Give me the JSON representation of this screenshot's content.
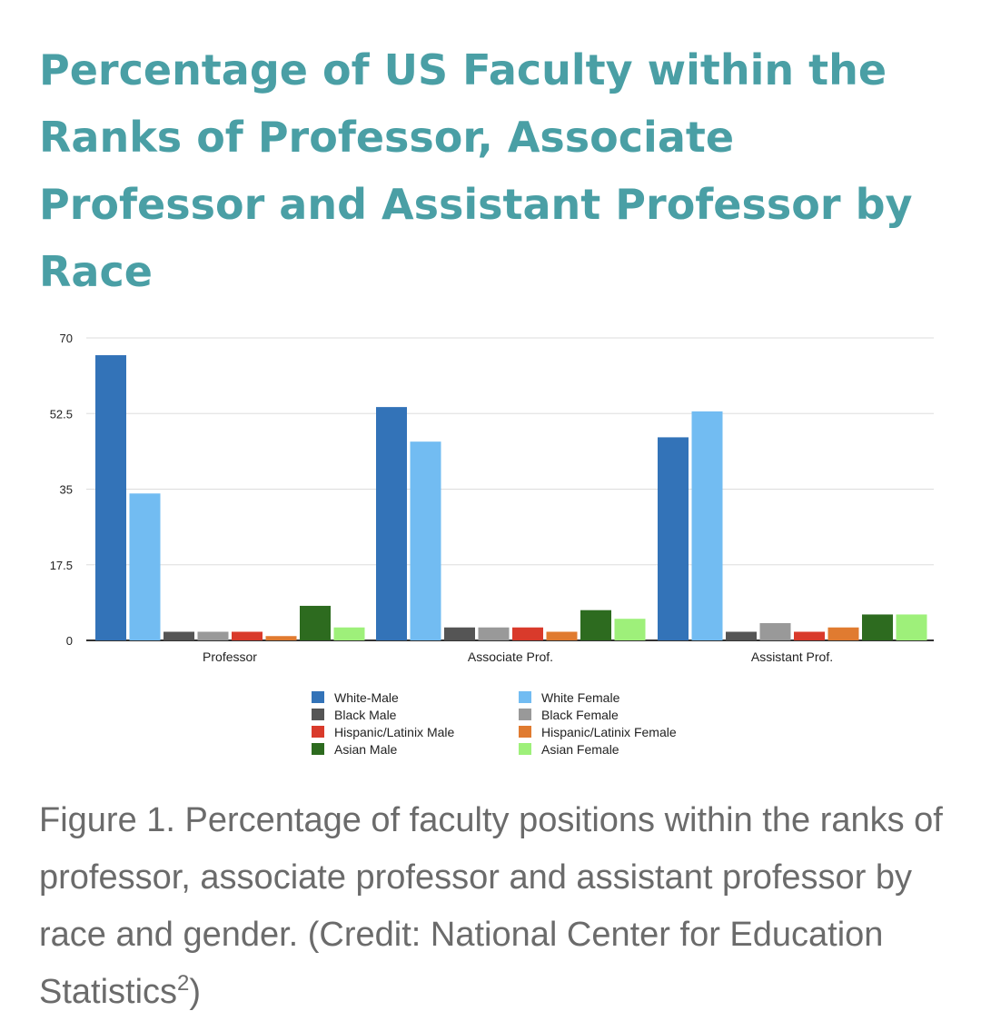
{
  "page": {
    "title": "Percentage of US Faculty within the Ranks of Professor, Associate Professor and Assistant Professor by Race",
    "caption_text": "Figure 1. Percentage of faculty positions within the ranks of professor, associate professor and assistant professor by race and gender. (Credit: National Center for Education Statistics",
    "caption_sup": "2",
    "caption_end": ")"
  },
  "chart_data": {
    "type": "bar",
    "title": "",
    "xlabel": "",
    "ylabel": "",
    "ylim": [
      0,
      70
    ],
    "yticks": [
      0,
      17.5,
      35,
      52.5,
      70
    ],
    "ytick_labels": [
      "0",
      "17.5",
      "35",
      "52.5",
      "70"
    ],
    "grid": true,
    "legend_position": "bottom",
    "categories": [
      "Professor",
      "Associate Prof.",
      "Assistant Prof."
    ],
    "series": [
      {
        "name": "White-Male",
        "color": "#3373b8",
        "values": [
          66,
          54,
          47
        ]
      },
      {
        "name": "White Female",
        "color": "#72bcf2",
        "values": [
          34,
          46,
          53
        ]
      },
      {
        "name": "Black Male",
        "color": "#555555",
        "values": [
          2,
          3,
          2
        ]
      },
      {
        "name": "Black Female",
        "color": "#999999",
        "values": [
          2,
          3,
          4
        ]
      },
      {
        "name": "Hispanic/Latinix Male",
        "color": "#d93a2b",
        "values": [
          2,
          3,
          2
        ]
      },
      {
        "name": "Hispanic/Latinix Female",
        "color": "#e07b30",
        "values": [
          1,
          2,
          3
        ]
      },
      {
        "name": "Asian Male",
        "color": "#2d6b1f",
        "values": [
          8,
          7,
          6
        ]
      },
      {
        "name": "Asian Female",
        "color": "#9ef07a",
        "values": [
          3,
          5,
          6
        ]
      }
    ]
  }
}
